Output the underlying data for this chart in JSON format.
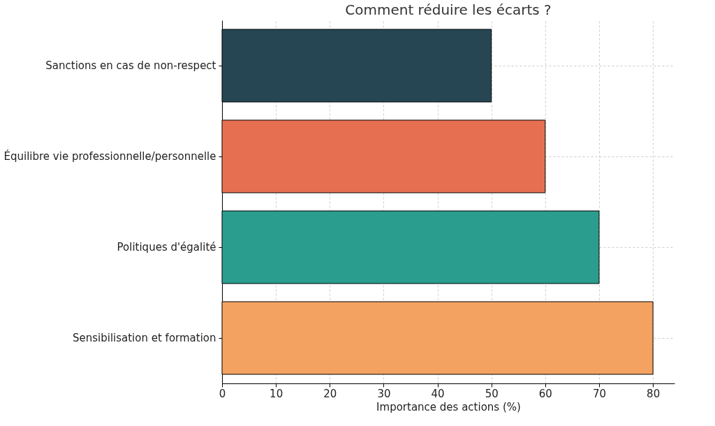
{
  "chart_data": {
    "type": "bar",
    "orientation": "horizontal",
    "title": "Comment réduire les écarts ?",
    "xlabel": "Importance des actions (%)",
    "categories": [
      "Sanctions en cas de non-respect",
      "Équilibre vie professionnelle/personnelle",
      "Politiques d'égalité",
      "Sensibilisation et formation"
    ],
    "values": [
      50,
      60,
      70,
      80
    ],
    "colors": [
      "#264653",
      "#e76f51",
      "#2a9d8f",
      "#f4a261"
    ],
    "xlim": [
      0,
      84
    ],
    "xticks": [
      0,
      10,
      20,
      30,
      40,
      50,
      60,
      70,
      80
    ],
    "grid": true
  }
}
